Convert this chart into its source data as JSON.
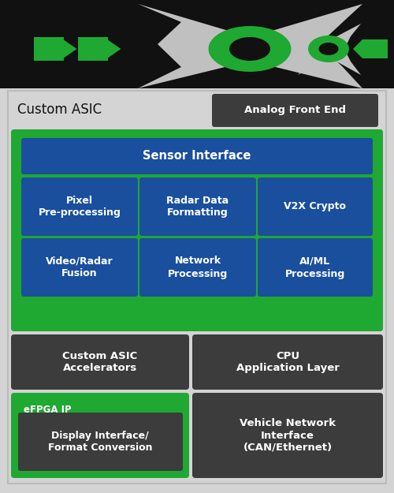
{
  "bg_top": "#111111",
  "bg_main": "#d4d4d4",
  "green": "#1fa832",
  "blue": "#1a4f9e",
  "dark": "#3c3c3c",
  "white": "#ffffff",
  "black": "#000000",
  "title": "Custom ASIC",
  "analog_front_end": "Analog Front End",
  "sensor_interface": "Sensor Interface",
  "pixel_pre": "Pixel\nPre-processing",
  "radar_data": "Radar Data\nFormatting",
  "v2x_crypto": "V2X Crypto",
  "video_radar": "Video/Radar\nFusion",
  "network_proc": "Network\nProcessing",
  "aiml_proc": "AI/ML\nProcessing",
  "custom_asic_acc": "Custom ASIC\nAccelerators",
  "cpu_app": "CPU\nApplication Layer",
  "efpga": "eFPGA IP",
  "display_iface": "Display Interface/\nFormat Conversion",
  "vehicle_net": "Vehicle Network\nInterface\n(CAN/Ethernet)"
}
